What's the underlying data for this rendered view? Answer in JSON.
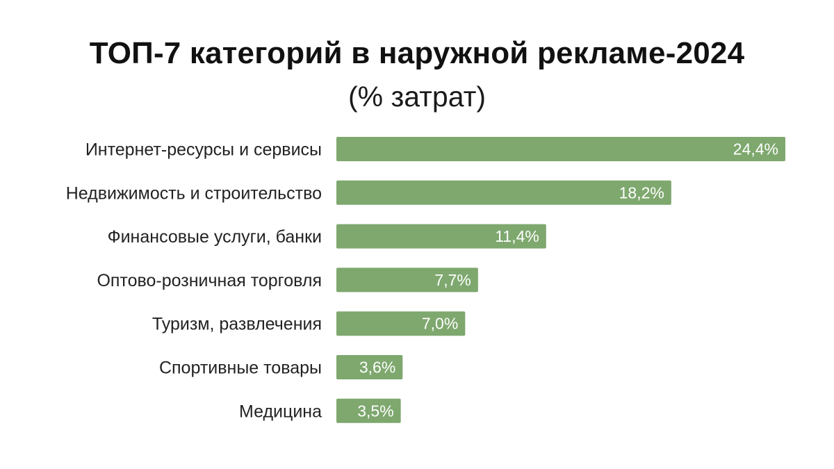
{
  "chart_data": {
    "type": "bar",
    "orientation": "horizontal",
    "title": "ТОП-7 категорий в наружной рекламе-2024",
    "subtitle": "(% затрат)",
    "categories": [
      "Интернет-ресурсы и сервисы",
      "Недвижимость и строительство",
      "Финансовые услуги, банки",
      "Оптово-розничная торговля",
      "Туризм, развлечения",
      "Спортивные товары",
      "Медицина"
    ],
    "values": [
      24.4,
      18.2,
      11.4,
      7.7,
      7.0,
      3.6,
      3.5
    ],
    "value_labels": [
      "24,4%",
      "18,2%",
      "11,4%",
      "7,7%",
      "7,0%",
      "3,6%",
      "3,5%"
    ],
    "xlim": [
      0,
      24.4
    ],
    "bar_color": "#7ea86e",
    "grid": false,
    "legend": "none"
  }
}
